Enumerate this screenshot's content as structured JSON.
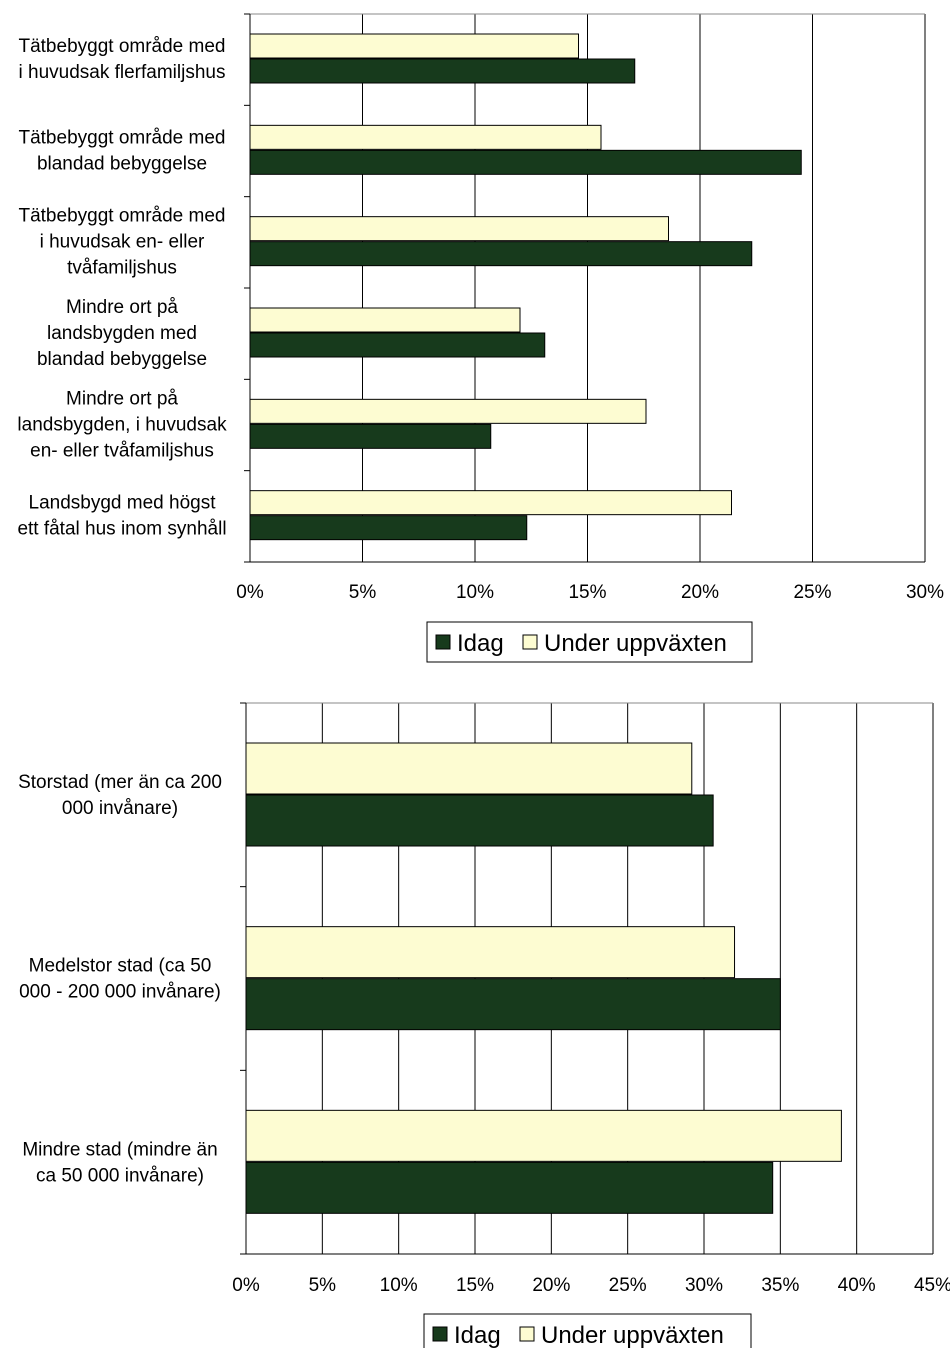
{
  "colors": {
    "idag": "#173a1c",
    "under": "#fdfcd2",
    "gridline": "#000000",
    "bar_stroke": "#000000"
  },
  "legend": {
    "idag": "Idag",
    "under": "Under uppväxten"
  },
  "chart_data": [
    {
      "type": "bar",
      "orientation": "horizontal",
      "categories": [
        [
          "Tätbebyggt område med",
          "i huvudsak flerfamiljshus"
        ],
        [
          "Tätbebyggt område med",
          "blandad bebyggelse"
        ],
        [
          "Tätbebyggt område med",
          "i huvudsak en- eller",
          "tvåfamiljshus"
        ],
        [
          "Mindre ort på",
          "landsbygden med",
          "blandad bebyggelse"
        ],
        [
          "Mindre ort på",
          "landsbygden, i huvudsak",
          "en- eller tvåfamiljshus"
        ],
        [
          "Landsbygd med högst",
          "ett fåtal hus inom synhåll"
        ]
      ],
      "series": [
        {
          "name": "Under uppväxten",
          "values": [
            14.6,
            15.6,
            18.6,
            12.0,
            17.6,
            21.4
          ]
        },
        {
          "name": "Idag",
          "values": [
            17.1,
            24.5,
            22.3,
            13.1,
            10.7,
            12.3
          ]
        }
      ],
      "xlim": [
        0,
        30
      ],
      "xticks": [
        "0%",
        "5%",
        "10%",
        "15%",
        "20%",
        "25%",
        "30%"
      ],
      "grid": "vertical",
      "legend_position": "bottom"
    },
    {
      "type": "bar",
      "orientation": "horizontal",
      "categories": [
        [
          "Storstad (mer än ca 200",
          "000 invånare)"
        ],
        [
          "Medelstor stad (ca 50",
          "000 - 200 000 invånare)"
        ],
        [
          "Mindre stad (mindre än",
          "ca 50 000 invånare)"
        ]
      ],
      "series": [
        {
          "name": "Under uppväxten",
          "values": [
            29.2,
            32.0,
            39.0
          ]
        },
        {
          "name": "Idag",
          "values": [
            30.6,
            35.0,
            34.5
          ]
        }
      ],
      "xlim": [
        0,
        45
      ],
      "xticks": [
        "0%",
        "5%",
        "10%",
        "15%",
        "20%",
        "25%",
        "30%",
        "35%",
        "40%",
        "45%"
      ],
      "grid": "vertical",
      "legend_position": "bottom"
    }
  ]
}
